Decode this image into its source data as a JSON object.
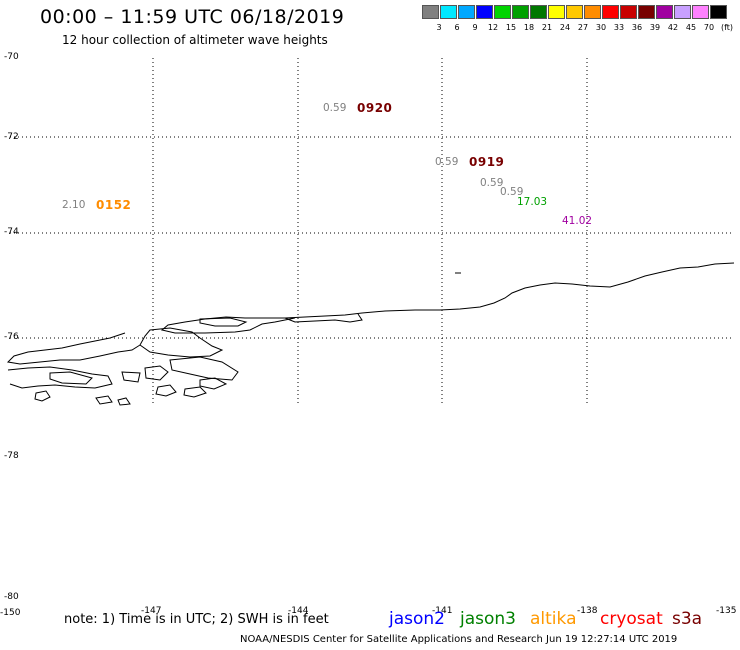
{
  "header": {
    "title": "00:00 – 11:59 UTC 06/18/2019",
    "subtitle": "12 hour collection of altimeter wave heights"
  },
  "colorbar": {
    "colors": [
      "#808080",
      "#00e8ff",
      "#00a8ff",
      "#0000ff",
      "#00d400",
      "#00a000",
      "#007800",
      "#ffff00",
      "#ffc800",
      "#ff8c00",
      "#ff0000",
      "#c80000",
      "#780000",
      "#a000a0",
      "#c8a0ff",
      "#ff82ff",
      "#000000"
    ],
    "labels": [
      "3",
      "6",
      "9",
      "12",
      "15",
      "18",
      "21",
      "24",
      "27",
      "30",
      "33",
      "36",
      "39",
      "42",
      "45",
      "70",
      "(ft)"
    ]
  },
  "axes": {
    "lat_labels": [
      "-70",
      "-72",
      "-74",
      "-76",
      "-78",
      "-78",
      "-80"
    ],
    "lon_labels": [
      "-150",
      "-147",
      "-144",
      "-141",
      "-138",
      "-135"
    ]
  },
  "wave_heights": [
    {
      "value": "0.59",
      "color": "#808080"
    },
    {
      "value": "0.59",
      "color": "#808080"
    },
    {
      "value": "0.59",
      "color": "#808080"
    },
    {
      "value": "0.59",
      "color": "#808080"
    },
    {
      "value": "17.03",
      "color": "#00a000"
    },
    {
      "value": "41.02",
      "color": "#a000a0"
    },
    {
      "value": "2.10",
      "color": "#808080"
    }
  ],
  "pass_times": [
    {
      "label": "0920",
      "color": "#780000"
    },
    {
      "label": "0919",
      "color": "#780000"
    },
    {
      "label": "0152",
      "color": "#ff8c00"
    }
  ],
  "note": "note: 1) Time is in UTC; 2) SWH is in feet",
  "satellites": [
    {
      "name": "jason2",
      "color": "#0000ff"
    },
    {
      "name": "jason3",
      "color": "#008000"
    },
    {
      "name": "altika",
      "color": "#ff9900"
    },
    {
      "name": "cryosat",
      "color": "#ff0000"
    },
    {
      "name": "s3a",
      "color": "#780000"
    }
  ],
  "footer": "NOAA/NESDIS Center for Satellite Applications and Research    Jun 19 12:27:14 UTC 2019"
}
